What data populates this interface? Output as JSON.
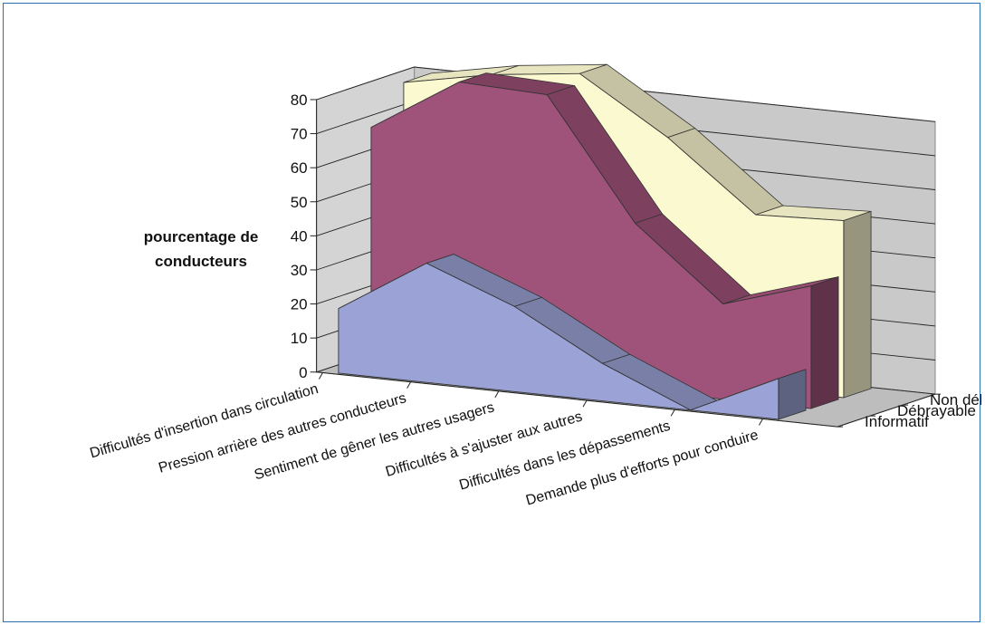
{
  "chart_data": {
    "type": "area",
    "ylabel_lines": [
      "pourcentage de",
      "conducteurs"
    ],
    "ylim": [
      0,
      80
    ],
    "yticks": [
      0,
      10,
      20,
      30,
      40,
      50,
      60,
      70,
      80
    ],
    "grid": true,
    "categories": [
      "Difficultés d'insertion dans circulation",
      "Pression arrière des autres conducteurs",
      "Sentiment de gêner les autres usagers",
      "Difficultés à s'ajuster aux autres",
      "Difficultés dans les dépassements",
      "Demande plus d'efforts pour conduire"
    ],
    "series": [
      {
        "name": "Informatif",
        "values": [
          19,
          35,
          25,
          11,
          0,
          12
        ],
        "color": "#9ba3d6"
      },
      {
        "name": "Débrayable",
        "values": [
          69,
          85,
          84,
          49,
          28,
          36
        ],
        "color": "#a0537a"
      },
      {
        "name": "Non débrayable",
        "values": [
          79,
          84,
          87,
          71,
          51,
          52
        ],
        "color": "#fbf9d0"
      }
    ]
  }
}
